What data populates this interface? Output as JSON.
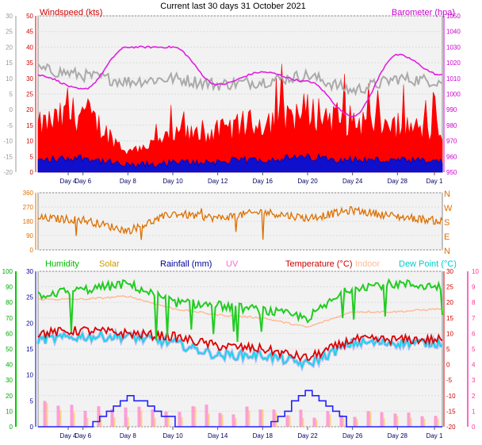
{
  "title": "Current last 30 days 31 October 2021",
  "x_day_labels_top": [
    "Day 4",
    "Day 6",
    "Day 8",
    "Day 10",
    "Day 12",
    "Day 16",
    "Day 20",
    "Day 24",
    "Day 28",
    "Day 1"
  ],
  "x_day_labels_bottom": [
    "Day 4",
    "Day 6",
    "Day 8",
    "Day 10",
    "Day 14",
    "Day 18",
    "Day 22",
    "Day 26",
    "Day 28",
    "Day 1"
  ],
  "panel1": {
    "left_title": "Windspeed (kts)",
    "right_title": "Barometer (hpa)",
    "left_ticks_gray": [
      "30",
      "25",
      "20",
      "15",
      "10",
      "5",
      "0",
      "-5",
      "-10",
      "-15",
      "-20"
    ],
    "left_ticks_red": [
      "50",
      "45",
      "40",
      "35",
      "30",
      "25",
      "20",
      "15",
      "10",
      "5",
      "0"
    ],
    "right_ticks": [
      "1050",
      "1040",
      "1030",
      "1020",
      "1010",
      "1000",
      "990",
      "980",
      "970",
      "960",
      "950"
    ],
    "colors": {
      "gust": "#ff0000",
      "wind": "#0000cc",
      "temperature_gray": "#aaaaaa",
      "barometer": "#e020e0"
    }
  },
  "panel2": {
    "left_ticks": [
      "360",
      "270",
      "180",
      "90",
      "0"
    ],
    "right_compass": [
      "N",
      "W",
      "S",
      "E",
      "N"
    ],
    "color": "#dd6f00"
  },
  "panel3": {
    "legend": [
      {
        "label": "Humidity",
        "color": "#00bb00"
      },
      {
        "label": "Solar",
        "color": "#cc9900"
      },
      {
        "label": "Rainfall (mm)",
        "color": "#000099"
      },
      {
        "label": "UV",
        "color": "#ff66cc"
      },
      {
        "label": "Temperature (°C)",
        "color": "#cc0000"
      },
      {
        "label": "Indoor",
        "color": "#ffbb99"
      },
      {
        "label": "Dew Point (°C)",
        "color": "#00cccc"
      }
    ],
    "humidity_ticks": [
      "100",
      "90",
      "80",
      "70",
      "60",
      "50",
      "40",
      "30",
      "20",
      "10",
      "0"
    ],
    "rain_ticks": [
      "30",
      "25",
      "20",
      "15",
      "10",
      "5",
      "0"
    ],
    "temp_ticks": [
      "30",
      "25",
      "20",
      "15",
      "10",
      "5",
      "0",
      "-5",
      "-10",
      "-15",
      "-20"
    ],
    "uv_ticks": [
      "10",
      "9",
      "8",
      "7",
      "6",
      "5",
      "4",
      "3",
      "2",
      "1",
      "0"
    ]
  },
  "chart_data": [
    {
      "type": "line",
      "title": "Windspeed (kts) / Barometer (hpa)",
      "x": [
        "Day 4",
        "Day 6",
        "Day 8",
        "Day 10",
        "Day 12",
        "Day 16",
        "Day 20",
        "Day 24",
        "Day 28",
        "Day 1"
      ],
      "series": [
        {
          "name": "Barometer (hpa)",
          "axis": "right",
          "ylim": [
            950,
            1050
          ],
          "values": [
            1012,
            1003,
            1030,
            1030,
            1006,
            1014,
            1008,
            986,
            1025,
            1012
          ]
        },
        {
          "name": "Windspeed (kts)",
          "axis": "left",
          "ylim": [
            0,
            50
          ],
          "values": [
            7,
            10,
            2,
            5,
            6,
            8,
            10,
            8,
            7,
            6
          ]
        },
        {
          "axis": "left-gray",
          "ylim": [
            -20,
            30
          ],
          "values": [
            13,
            11,
            9,
            10,
            8,
            9,
            11,
            6,
            10,
            9
          ]
        }
      ]
    },
    {
      "type": "scatter",
      "x": [
        "Day 4",
        "Day 6",
        "Day 8",
        "Day 10",
        "Day 12",
        "Day 16",
        "Day 20",
        "Day 24",
        "Day 28",
        "Day 1"
      ],
      "series": [
        {
          "values": [
            200,
            190,
            120,
            230,
            200,
            240,
            200,
            250,
            210,
            180
          ]
        }
      ],
      "ylim": [
        0,
        360
      ]
    },
    {
      "type": "line",
      "x": [
        "Day 4",
        "Day 6",
        "Day 8",
        "Day 10",
        "Day 14",
        "Day 18",
        "Day 22",
        "Day 26",
        "Day 28",
        "Day 1"
      ],
      "series": [
        {
          "name": "Humidity",
          "axis": "humidity",
          "ylim": [
            0,
            100
          ],
          "values": [
            85,
            88,
            92,
            80,
            78,
            75,
            70,
            90,
            92,
            90
          ]
        },
        {
          "name": "Temperature (°C)",
          "axis": "temperature",
          "ylim": [
            -20,
            30
          ],
          "values": [
            10,
            11,
            10,
            9,
            6,
            5,
            2,
            8,
            8,
            8
          ]
        },
        {
          "name": "Dew Point (°C)",
          "axis": "temperature",
          "ylim": [
            -20,
            30
          ],
          "values": [
            8,
            9,
            9,
            7,
            3,
            3,
            0,
            7,
            7,
            7
          ]
        },
        {
          "name": "Indoor",
          "axis": "temperature",
          "ylim": [
            -20,
            30
          ],
          "values": [
            21,
            21,
            22,
            18,
            16,
            15,
            12,
            17,
            17,
            18
          ]
        },
        {
          "name": "Rainfall (mm)",
          "axis": "rain",
          "ylim": [
            0,
            30
          ],
          "values": [
            0,
            0,
            6,
            1,
            0,
            0,
            7,
            0,
            0,
            0
          ]
        },
        {
          "name": "UV",
          "axis": "uv",
          "ylim": [
            0,
            10
          ],
          "values": [
            1.5,
            1.4,
            1.3,
            1.2,
            1.1,
            1,
            0.9,
            0.8,
            0.8,
            0.7
          ]
        }
      ]
    }
  ]
}
